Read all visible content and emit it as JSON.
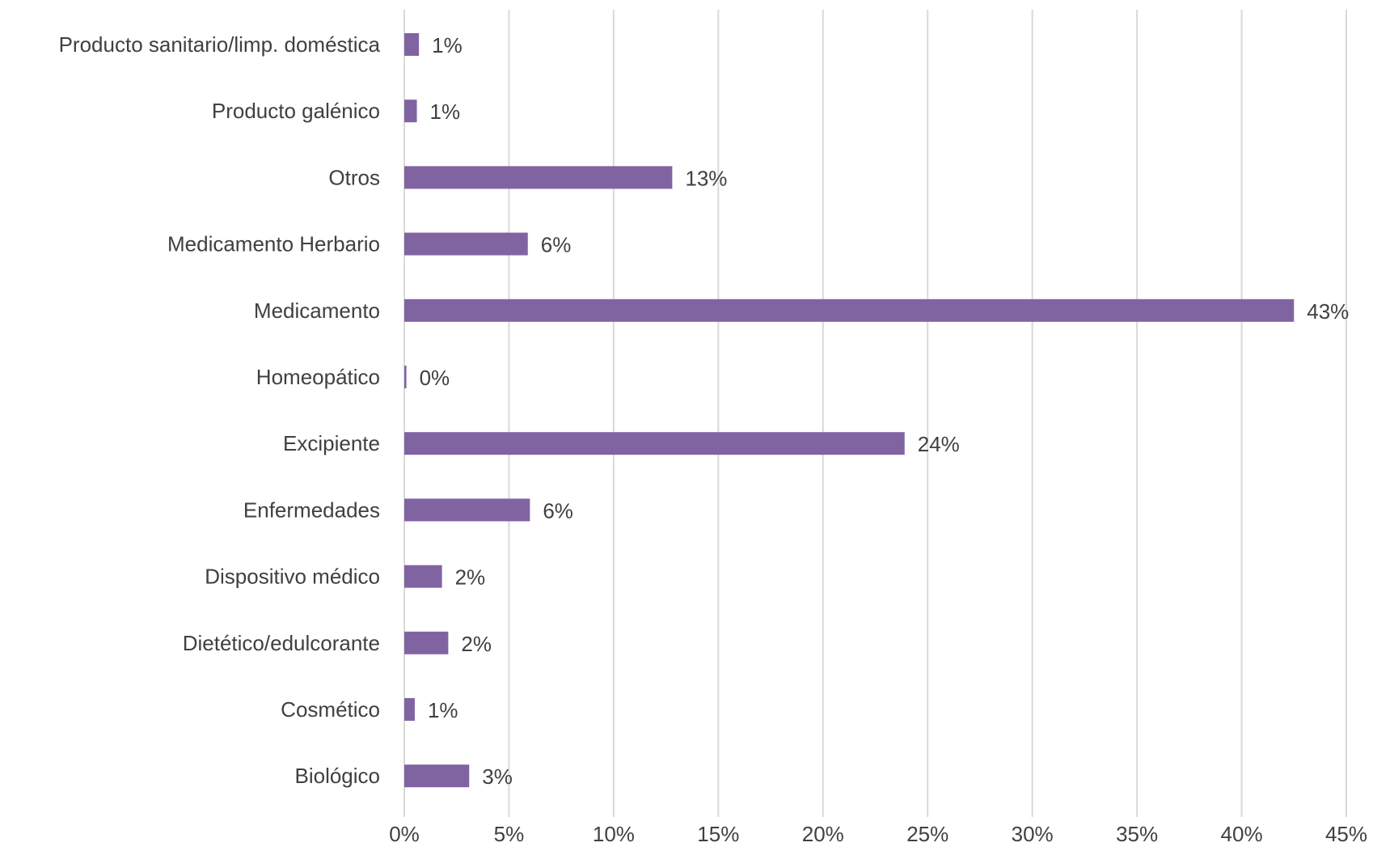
{
  "chart_data": {
    "type": "bar",
    "orientation": "horizontal",
    "categories": [
      "Producto sanitario/limp. doméstica",
      "Producto galénico",
      "Otros",
      "Medicamento Herbario",
      "Medicamento",
      "Homeopático",
      "Excipiente",
      "Enfermedades",
      "Dispositivo médico",
      "Dietético/edulcorante",
      "Cosmético",
      "Biológico"
    ],
    "values": [
      0.7,
      0.6,
      12.8,
      5.9,
      42.5,
      0.1,
      23.9,
      6.0,
      1.8,
      2.1,
      0.5,
      3.1
    ],
    "data_labels": [
      "1%",
      "1%",
      "13%",
      "6%",
      "43%",
      "0%",
      "24%",
      "6%",
      "2%",
      "2%",
      "1%",
      "3%"
    ],
    "xlim": [
      0,
      45
    ],
    "x_ticks": [
      0,
      5,
      10,
      15,
      20,
      25,
      30,
      35,
      40,
      45
    ],
    "x_tick_labels": [
      "0%",
      "5%",
      "10%",
      "15%",
      "20%",
      "25%",
      "30%",
      "35%",
      "40%",
      "45%"
    ],
    "title": "",
    "xlabel": "",
    "ylabel": "",
    "grid": "vertical",
    "legend": "none",
    "colors": {
      "bar": "#8064a2",
      "grid": "#d9d9d9",
      "text": "#404040"
    }
  }
}
